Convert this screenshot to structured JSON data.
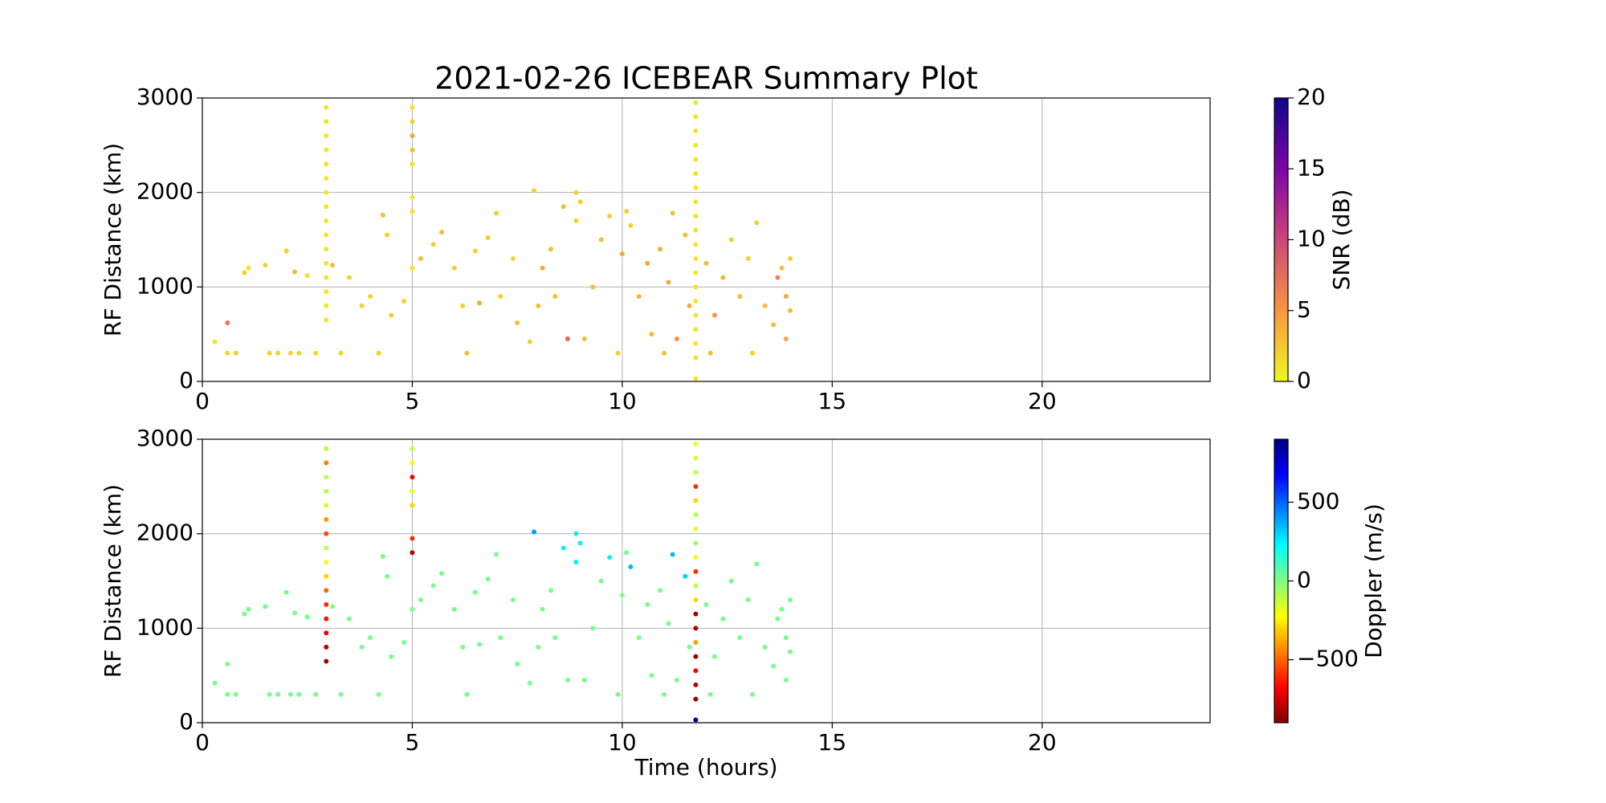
{
  "chart_data": [
    {
      "type": "scatter",
      "title": "2021-02-26 ICEBEAR Summary Plot",
      "ylabel": "RF Distance (km)",
      "clabel": "SNR (dB)",
      "xlim": [
        0,
        24
      ],
      "xticks": [
        0,
        5,
        10,
        15,
        20
      ],
      "ylim": [
        0,
        3000
      ],
      "yticks": [
        0,
        1000,
        2000,
        3000
      ],
      "grid": true,
      "clim": [
        0,
        20
      ],
      "cticks": [
        0,
        5,
        10,
        15,
        20
      ],
      "colormap": [
        "#f0f921",
        "#f89540",
        "#cc4778",
        "#7e03a8",
        "#0d0887"
      ],
      "x": [
        0.3,
        0.6,
        0.6,
        0.8,
        1.0,
        1.1,
        1.5,
        1.6,
        1.8,
        2.0,
        2.1,
        2.2,
        2.3,
        2.5,
        2.7,
        3.1,
        3.3,
        3.5,
        3.8,
        4.0,
        4.2,
        4.3,
        4.4,
        4.5,
        4.8,
        5.2,
        5.5,
        5.7,
        6.0,
        6.2,
        6.3,
        6.5,
        6.6,
        6.8,
        7.0,
        7.1,
        7.4,
        7.5,
        7.8,
        7.9,
        8.0,
        8.1,
        8.3,
        8.4,
        8.6,
        8.7,
        8.9,
        8.9,
        9.0,
        9.1,
        9.3,
        9.5,
        9.7,
        9.9,
        10.0,
        10.1,
        10.2,
        10.4,
        10.6,
        10.7,
        10.9,
        11.1,
        11.2,
        11.3,
        11.5,
        11.6,
        12.0,
        12.2,
        12.4,
        12.6,
        12.8,
        13.0,
        13.2,
        13.4,
        13.6,
        13.7,
        13.8,
        13.9,
        14.0,
        14.0,
        13.9,
        12.1,
        13.1,
        11.0,
        2.95,
        2.95,
        2.95,
        2.95,
        2.95,
        2.95,
        2.95,
        2.95,
        2.95,
        2.95,
        2.95,
        2.95,
        2.95,
        2.95,
        2.95,
        2.95,
        5.0,
        5.0,
        5.0,
        5.0,
        5.0,
        5.0,
        5.0,
        5.0,
        11.75,
        11.75,
        11.75,
        11.75,
        11.75,
        11.75,
        11.75,
        11.75,
        11.75,
        11.75,
        11.75,
        11.75,
        11.75,
        11.75,
        11.75,
        11.75,
        11.75,
        11.75,
        11.75,
        11.75
      ],
      "y": [
        420,
        620,
        300,
        300,
        1150,
        1200,
        1230,
        300,
        300,
        1380,
        300,
        1160,
        300,
        1120,
        300,
        1230,
        300,
        1100,
        800,
        900,
        300,
        1760,
        1550,
        700,
        850,
        1300,
        1450,
        1580,
        1200,
        800,
        300,
        1380,
        830,
        1520,
        1780,
        900,
        1300,
        620,
        420,
        2020,
        800,
        1200,
        1400,
        900,
        1850,
        450,
        1700,
        2000,
        1900,
        450,
        1000,
        1500,
        1750,
        300,
        1350,
        1800,
        1650,
        900,
        1250,
        500,
        1400,
        1050,
        1780,
        450,
        1550,
        800,
        1250,
        700,
        1100,
        1500,
        900,
        1300,
        1680,
        800,
        600,
        1100,
        1200,
        900,
        750,
        1300,
        450,
        300,
        300,
        300,
        650,
        800,
        950,
        1100,
        1250,
        1400,
        1550,
        1700,
        1850,
        2000,
        2150,
        2300,
        2450,
        2600,
        2750,
        2900,
        1200,
        1800,
        1950,
        2300,
        2450,
        2600,
        2750,
        2900,
        250,
        400,
        550,
        700,
        850,
        1000,
        1150,
        1300,
        1450,
        1600,
        1750,
        1900,
        2050,
        2200,
        2350,
        2500,
        2650,
        2800,
        2950,
        30
      ],
      "c": [
        1,
        7,
        2,
        2,
        2,
        1,
        2,
        2,
        2,
        2,
        2,
        3,
        2,
        1,
        2,
        3,
        2,
        2,
        2,
        2,
        2,
        3,
        2,
        2,
        2,
        3,
        2,
        3,
        2,
        2,
        3,
        2,
        4,
        2,
        2,
        2,
        2,
        3,
        2,
        2,
        3,
        4,
        3,
        3,
        3,
        8,
        2,
        2,
        2,
        3,
        3,
        3,
        2,
        2,
        4,
        2,
        2,
        3,
        4,
        3,
        4,
        4,
        3,
        5,
        3,
        4,
        3,
        5,
        3,
        2,
        3,
        2,
        2,
        3,
        3,
        6,
        3,
        4,
        3,
        2,
        4,
        3,
        2,
        3,
        1,
        1,
        1,
        1,
        1,
        1,
        1,
        1,
        1,
        1,
        1,
        1,
        1,
        1,
        1,
        1,
        1,
        1,
        1,
        1,
        3,
        4,
        2,
        1,
        1,
        1,
        1,
        1,
        1,
        1,
        1,
        1,
        1,
        1,
        1,
        1,
        1,
        1,
        1,
        1,
        1,
        1,
        1,
        1
      ]
    },
    {
      "type": "scatter",
      "ylabel": "RF Distance (km)",
      "xlabel": "Time (hours)",
      "clabel": "Doppler (m/s)",
      "xlim": [
        0,
        24
      ],
      "xticks": [
        0,
        5,
        10,
        15,
        20
      ],
      "ylim": [
        0,
        3000
      ],
      "yticks": [
        0,
        1000,
        2000,
        3000
      ],
      "grid": true,
      "clim": [
        -900,
        900
      ],
      "cticks": [
        {
          "value": -500,
          "label": "−500"
        },
        0,
        500
      ],
      "colormap": [
        "#800000",
        "#ff0000",
        "#ff8000",
        "#ffff00",
        "#80ff80",
        "#00ffff",
        "#0080ff",
        "#0000ff",
        "#000080"
      ],
      "x": [
        0.3,
        0.6,
        0.6,
        0.8,
        1.0,
        1.1,
        1.5,
        1.6,
        1.8,
        2.0,
        2.1,
        2.2,
        2.3,
        2.5,
        2.7,
        3.1,
        3.3,
        3.5,
        3.8,
        4.0,
        4.2,
        4.3,
        4.4,
        4.5,
        4.8,
        5.2,
        5.5,
        5.7,
        6.0,
        6.2,
        6.3,
        6.5,
        6.6,
        6.8,
        7.0,
        7.1,
        7.4,
        7.5,
        7.8,
        7.9,
        8.0,
        8.1,
        8.3,
        8.4,
        8.6,
        8.7,
        8.9,
        8.9,
        9.0,
        9.1,
        9.3,
        9.5,
        9.7,
        9.9,
        10.0,
        10.1,
        10.2,
        10.4,
        10.6,
        10.7,
        10.9,
        11.1,
        11.2,
        11.3,
        11.5,
        11.6,
        12.0,
        12.2,
        12.4,
        12.6,
        12.8,
        13.0,
        13.2,
        13.4,
        13.6,
        13.7,
        13.8,
        13.9,
        14.0,
        14.0,
        13.9,
        12.1,
        13.1,
        11.0,
        2.95,
        2.95,
        2.95,
        2.95,
        2.95,
        2.95,
        2.95,
        2.95,
        2.95,
        2.95,
        2.95,
        2.95,
        2.95,
        2.95,
        2.95,
        2.95,
        5.0,
        5.0,
        5.0,
        5.0,
        5.0,
        5.0,
        5.0,
        5.0,
        11.75,
        11.75,
        11.75,
        11.75,
        11.75,
        11.75,
        11.75,
        11.75,
        11.75,
        11.75,
        11.75,
        11.75,
        11.75,
        11.75,
        11.75,
        11.75,
        11.75,
        11.75,
        11.75,
        11.75
      ],
      "y": [
        420,
        620,
        300,
        300,
        1150,
        1200,
        1230,
        300,
        300,
        1380,
        300,
        1160,
        300,
        1120,
        300,
        1230,
        300,
        1100,
        800,
        900,
        300,
        1760,
        1550,
        700,
        850,
        1300,
        1450,
        1580,
        1200,
        800,
        300,
        1380,
        830,
        1520,
        1780,
        900,
        1300,
        620,
        420,
        2020,
        800,
        1200,
        1400,
        900,
        1850,
        450,
        1700,
        2000,
        1900,
        450,
        1000,
        1500,
        1750,
        300,
        1350,
        1800,
        1650,
        900,
        1250,
        500,
        1400,
        1050,
        1780,
        450,
        1550,
        800,
        1250,
        700,
        1100,
        1500,
        900,
        1300,
        1680,
        800,
        600,
        1100,
        1200,
        900,
        750,
        1300,
        450,
        300,
        300,
        300,
        650,
        800,
        950,
        1100,
        1250,
        1400,
        1550,
        1700,
        1850,
        2000,
        2150,
        2300,
        2450,
        2600,
        2750,
        2900,
        1200,
        1800,
        1950,
        2300,
        2450,
        2600,
        2750,
        2900,
        250,
        400,
        550,
        700,
        850,
        1000,
        1150,
        1300,
        1450,
        1600,
        1750,
        1900,
        2050,
        2200,
        2350,
        2500,
        2650,
        2800,
        2950,
        30
      ],
      "c": [
        20,
        20,
        20,
        20,
        20,
        20,
        20,
        20,
        20,
        20,
        20,
        20,
        20,
        20,
        20,
        20,
        20,
        20,
        20,
        20,
        20,
        20,
        20,
        20,
        20,
        20,
        20,
        20,
        20,
        20,
        20,
        20,
        20,
        20,
        20,
        20,
        20,
        20,
        20,
        400,
        20,
        20,
        20,
        20,
        250,
        20,
        250,
        250,
        250,
        20,
        20,
        20,
        250,
        20,
        20,
        20,
        350,
        20,
        20,
        20,
        20,
        20,
        350,
        20,
        300,
        20,
        20,
        20,
        20,
        20,
        20,
        20,
        20,
        20,
        20,
        20,
        20,
        20,
        20,
        20,
        20,
        20,
        20,
        20,
        -850,
        -800,
        -700,
        -650,
        -600,
        -500,
        -300,
        -200,
        -100,
        -550,
        -400,
        -150,
        -100,
        -100,
        -450,
        -100,
        20,
        -800,
        -600,
        -300,
        -200,
        -700,
        -200,
        -100,
        -850,
        -800,
        -700,
        -850,
        -400,
        -800,
        -850,
        -300,
        -100,
        -600,
        -200,
        -50,
        -150,
        -100,
        -300,
        -600,
        -100,
        -150,
        -200,
        850
      ]
    }
  ]
}
